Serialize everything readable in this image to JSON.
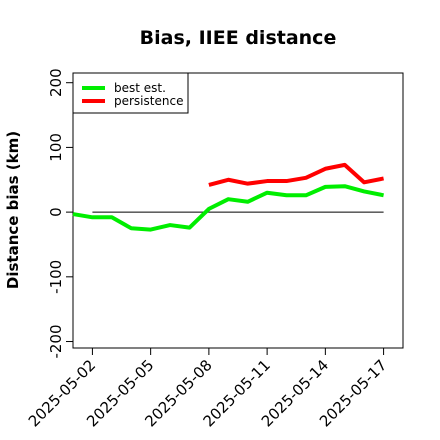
{
  "chart_data": {
    "type": "line",
    "title": "Bias, IIEE distance",
    "xlabel": "",
    "ylabel": "Distance bias (km)",
    "ylim": [
      -210,
      215
    ],
    "xlim": [
      "2025-05-01",
      "2025-05-18"
    ],
    "y_ticks": [
      -200,
      -100,
      0,
      100,
      200
    ],
    "x_ticks": [
      "2025-05-02",
      "2025-05-05",
      "2025-05-08",
      "2025-05-11",
      "2025-05-14",
      "2025-05-17"
    ],
    "reference_line": {
      "y": 0,
      "from": "2025-05-02",
      "to": "2025-05-17",
      "color": "#000000"
    },
    "legend": {
      "position": "top-left"
    },
    "series": [
      {
        "name": "best est.",
        "color": "#00ee00",
        "x": [
          "2025-05-01",
          "2025-05-02",
          "2025-05-03",
          "2025-05-04",
          "2025-05-05",
          "2025-05-06",
          "2025-05-07",
          "2025-05-08",
          "2025-05-09",
          "2025-05-10",
          "2025-05-11",
          "2025-05-12",
          "2025-05-13",
          "2025-05-14",
          "2025-05-15",
          "2025-05-16",
          "2025-05-17"
        ],
        "y": [
          -3,
          -8,
          -8,
          -25,
          -27,
          -20,
          -24,
          5,
          20,
          16,
          30,
          26,
          26,
          39,
          40,
          32,
          26
        ]
      },
      {
        "name": "persistence",
        "color": "#ff0000",
        "x": [
          "2025-05-08",
          "2025-05-09",
          "2025-05-10",
          "2025-05-11",
          "2025-05-12",
          "2025-05-13",
          "2025-05-14",
          "2025-05-15",
          "2025-05-16",
          "2025-05-17"
        ],
        "y": [
          42,
          50,
          44,
          48,
          48,
          53,
          67,
          73,
          46,
          52
        ]
      }
    ]
  }
}
